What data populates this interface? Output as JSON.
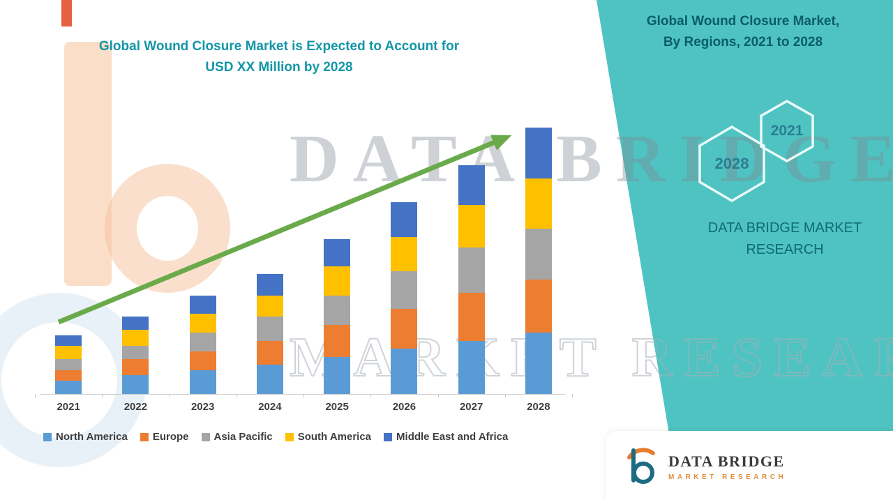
{
  "left": {
    "title_line1": "Global Wound Closure Market is Expected to Account for",
    "title_line2": "USD XX Million by 2028"
  },
  "chart_data": {
    "type": "bar",
    "stacked": true,
    "title": "Global Wound Closure Market is Expected to Account for USD XX Million by 2028",
    "categories": [
      "2021",
      "2022",
      "2023",
      "2024",
      "2025",
      "2026",
      "2027",
      "2028"
    ],
    "series": [
      {
        "name": "North America",
        "color": "#5b9bd5",
        "values": [
          5,
          7,
          9,
          11,
          14,
          17,
          20,
          23
        ]
      },
      {
        "name": "Europe",
        "color": "#ed7d31",
        "values": [
          4,
          6,
          7,
          9,
          12,
          15,
          18,
          20
        ]
      },
      {
        "name": "Asia Pacific",
        "color": "#a5a5a5",
        "values": [
          4,
          5,
          7,
          9,
          11,
          14,
          17,
          19
        ]
      },
      {
        "name": "South America",
        "color": "#ffc000",
        "values": [
          5,
          6,
          7,
          8,
          11,
          13,
          16,
          19
        ]
      },
      {
        "name": "Middle East and Africa",
        "color": "#4472c4",
        "values": [
          4,
          5,
          7,
          8,
          10,
          13,
          15,
          19
        ]
      }
    ],
    "xlabel": "",
    "ylabel": "",
    "ylim": [
      0,
      100
    ],
    "grid": false,
    "legend_position": "bottom",
    "annotations": [
      "upward green trend arrow from 2021 to 2028"
    ],
    "trend_arrow_color": "#6aaa4b"
  },
  "panel": {
    "title_line1": "Global Wound Closure Market,",
    "title_line2": "By Regions, 2021 to 2028",
    "hex_small_label": "2021",
    "hex_large_label": "2028",
    "brand_line1": "DATA BRIDGE MARKET",
    "brand_line2": "RESEARCH",
    "panel_color": "#4fc3c1"
  },
  "watermark": {
    "line1": "DATA BRIDGE",
    "line2": "MARKET RESEARCH"
  },
  "footer": {
    "name": "DATA BRIDGE",
    "sub": "MARKET RESEARCH"
  }
}
